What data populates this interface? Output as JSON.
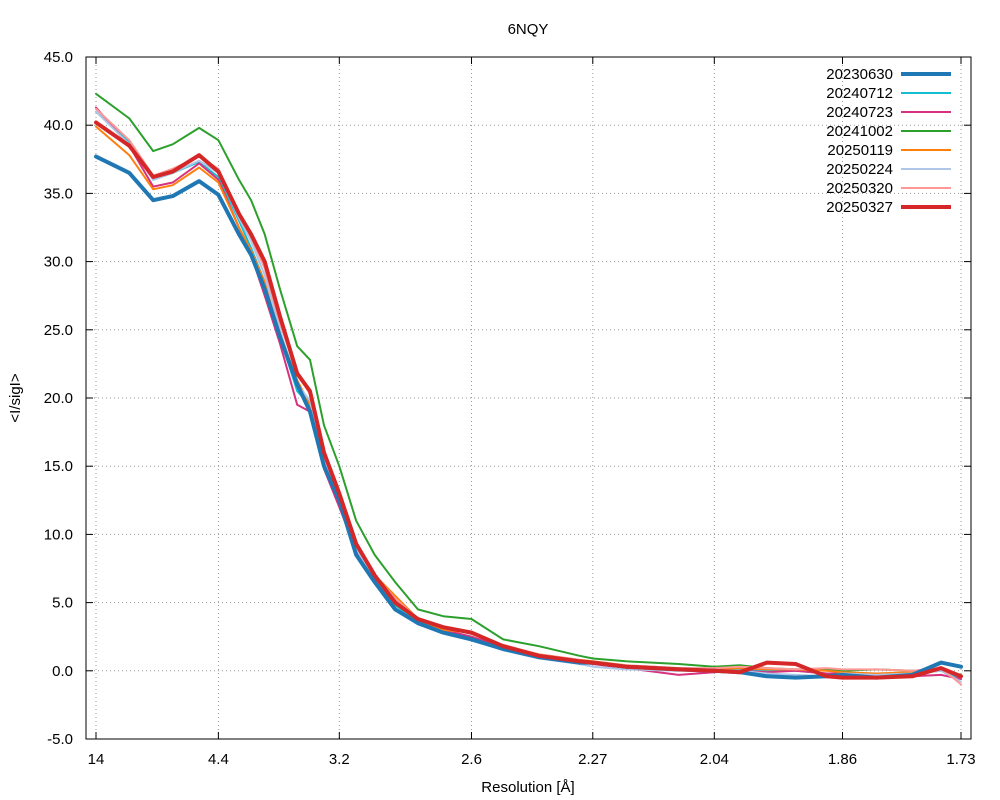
{
  "chart_data": {
    "type": "line",
    "title": "6NQY",
    "xlabel": "Resolution [Å]",
    "ylabel": "<I/sigI>",
    "x_scale": "reciprocal-square",
    "x_ticks": [
      "14",
      "4.4",
      "3.2",
      "2.6",
      "2.27",
      "2.04",
      "1.86",
      "1.73"
    ],
    "x_tick_values": [
      14,
      4.4,
      3.2,
      2.6,
      2.27,
      2.04,
      1.86,
      1.73
    ],
    "xlim": [
      14,
      1.73
    ],
    "ylim": [
      -5,
      45
    ],
    "y_ticks": [
      "-5.0",
      "0.0",
      "5.0",
      "10.0",
      "15.0",
      "20.0",
      "25.0",
      "30.0",
      "35.0",
      "40.0",
      "45.0"
    ],
    "y_tick_values": [
      -5,
      0,
      5,
      10,
      15,
      20,
      25,
      30,
      35,
      40,
      45
    ],
    "grid": true,
    "legend_position": "top-right",
    "x": [
      14,
      7.5,
      6.1,
      5.4,
      4.75,
      4.4,
      4.1,
      3.95,
      3.8,
      3.65,
      3.5,
      3.4,
      3.3,
      3.2,
      3.1,
      3.0,
      2.9,
      2.8,
      2.7,
      2.6,
      2.5,
      2.4,
      2.3,
      2.27,
      2.2,
      2.1,
      2.04,
      2.0,
      1.96,
      1.92,
      1.88,
      1.86,
      1.82,
      1.78,
      1.75,
      1.73
    ],
    "series": [
      {
        "name": "20230630",
        "color": "#1f77b4",
        "width": 4,
        "values": [
          37.7,
          36.5,
          34.5,
          34.8,
          35.9,
          34.9,
          32.0,
          30.5,
          28.0,
          24.5,
          21.0,
          19.0,
          15.0,
          12.5,
          8.5,
          6.5,
          4.5,
          3.5,
          2.8,
          2.3,
          1.6,
          1.0,
          0.6,
          0.6,
          0.3,
          0.1,
          0.0,
          -0.1,
          -0.4,
          -0.5,
          -0.4,
          -0.3,
          -0.5,
          -0.3,
          0.6,
          0.3
        ]
      },
      {
        "name": "20240712",
        "color": "#17becf",
        "width": 2,
        "values": [
          41.0,
          38.8,
          36.0,
          36.5,
          37.3,
          36.2,
          33.0,
          31.0,
          28.5,
          24.5,
          20.5,
          19.5,
          15.2,
          12.5,
          8.8,
          6.6,
          4.8,
          3.6,
          3.0,
          2.5,
          1.7,
          1.1,
          0.7,
          0.6,
          0.3,
          0.1,
          0.0,
          0.1,
          0.0,
          0.0,
          -0.2,
          -0.3,
          -0.4,
          -0.2,
          0.0,
          -0.6
        ]
      },
      {
        "name": "20240723",
        "color": "#d6327f",
        "width": 2,
        "values": [
          41.3,
          38.5,
          35.5,
          35.8,
          37.2,
          36.0,
          32.5,
          30.5,
          27.5,
          24.0,
          19.5,
          19.0,
          14.8,
          12.0,
          8.8,
          6.8,
          5.2,
          3.8,
          3.0,
          2.5,
          1.7,
          1.0,
          0.6,
          0.5,
          0.2,
          -0.3,
          -0.1,
          0.0,
          -0.1,
          0.0,
          -0.2,
          -0.2,
          -0.3,
          -0.4,
          -0.3,
          -0.6
        ]
      },
      {
        "name": "20241002",
        "color": "#2ca02c",
        "width": 2,
        "values": [
          42.3,
          40.5,
          38.1,
          38.6,
          39.8,
          38.9,
          36.0,
          34.5,
          32.0,
          28.0,
          23.8,
          22.8,
          18.0,
          15.0,
          11.0,
          8.5,
          6.5,
          4.5,
          4.0,
          3.8,
          2.3,
          1.8,
          1.1,
          0.9,
          0.7,
          0.5,
          0.3,
          0.4,
          0.2,
          0.1,
          0.1,
          0.0,
          0.1,
          0.0,
          0.1,
          -0.3
        ]
      },
      {
        "name": "20250119",
        "color": "#ff7f0e",
        "width": 2,
        "values": [
          39.9,
          37.8,
          35.3,
          35.6,
          36.9,
          35.8,
          32.5,
          30.8,
          28.5,
          24.8,
          21.3,
          19.5,
          15.5,
          12.8,
          9.0,
          7.0,
          5.5,
          3.8,
          3.0,
          2.8,
          1.8,
          1.2,
          0.8,
          0.7,
          0.4,
          0.2,
          0.1,
          0.2,
          0.1,
          0.1,
          0.0,
          -0.1,
          -0.2,
          -0.1,
          0.1,
          -0.4
        ]
      },
      {
        "name": "20250224",
        "color": "#aec7e8",
        "width": 2,
        "values": [
          41.0,
          38.6,
          36.0,
          36.5,
          37.4,
          36.5,
          33.2,
          31.5,
          29.0,
          25.0,
          21.0,
          19.8,
          15.5,
          12.8,
          9.0,
          6.5,
          4.5,
          3.4,
          2.8,
          2.3,
          1.5,
          0.9,
          0.5,
          0.3,
          0.1,
          0.0,
          0.0,
          0.0,
          -0.2,
          -0.3,
          -0.4,
          -0.2,
          -0.3,
          -0.2,
          0.0,
          -0.8
        ]
      },
      {
        "name": "20250320",
        "color": "#ff9896",
        "width": 2,
        "values": [
          41.2,
          38.9,
          36.3,
          36.8,
          37.7,
          36.8,
          33.5,
          31.8,
          29.5,
          25.5,
          21.8,
          20.3,
          15.8,
          13.0,
          9.3,
          7.0,
          5.3,
          3.8,
          3.2,
          2.7,
          1.9,
          1.2,
          0.8,
          0.6,
          0.4,
          0.2,
          0.2,
          0.3,
          0.2,
          0.1,
          0.2,
          0.1,
          0.1,
          0.0,
          0.2,
          -1.0
        ]
      },
      {
        "name": "20250327",
        "color": "#d62728",
        "width": 4,
        "values": [
          40.2,
          38.5,
          36.2,
          36.6,
          37.8,
          36.6,
          33.5,
          32.0,
          30.0,
          26.0,
          21.8,
          20.5,
          16.0,
          13.0,
          9.3,
          7.0,
          5.0,
          3.8,
          3.2,
          2.8,
          1.8,
          1.1,
          0.7,
          0.6,
          0.3,
          0.1,
          0.0,
          -0.1,
          0.6,
          0.5,
          -0.4,
          -0.5,
          -0.5,
          -0.4,
          0.2,
          -0.4
        ]
      }
    ]
  }
}
